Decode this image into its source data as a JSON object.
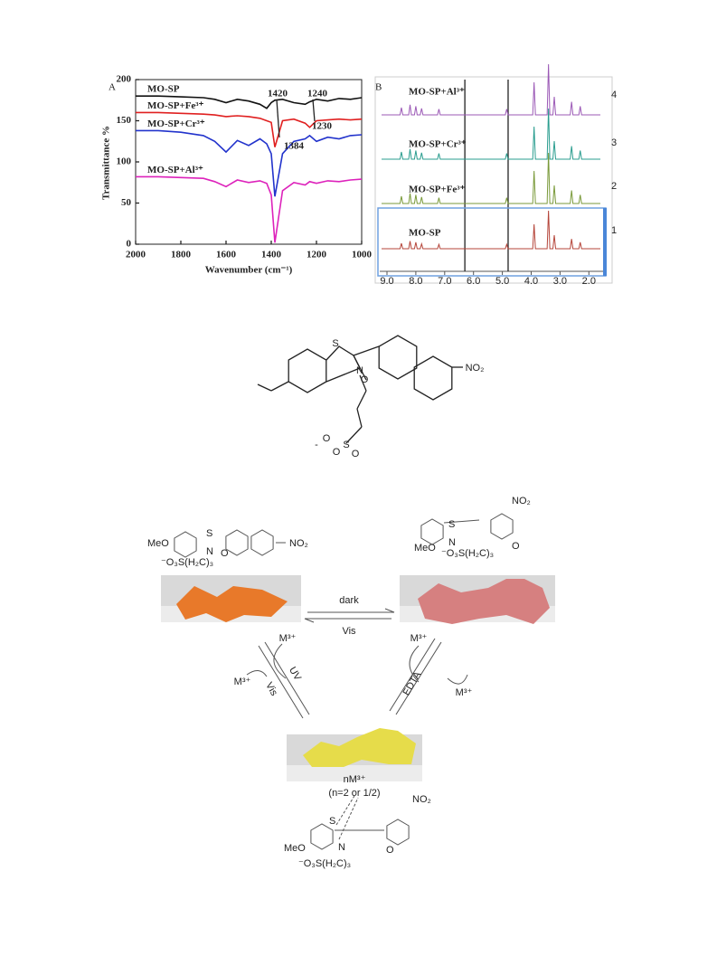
{
  "panel_a": {
    "type": "line",
    "label": "A",
    "y_label": "Transmittance %",
    "x_label": "Wavenumber (cm⁻¹)",
    "x": [
      2000,
      1900,
      1800,
      1700,
      1650,
      1600,
      1550,
      1500,
      1450,
      1420,
      1400,
      1384,
      1350,
      1300,
      1250,
      1230,
      1200,
      1150,
      1100,
      1050,
      1000
    ],
    "xlim": [
      2000,
      1000
    ],
    "xticks": [
      2000,
      1800,
      1600,
      1400,
      1200,
      1000
    ],
    "ylim": [
      0,
      200
    ],
    "yticks": [
      0,
      50,
      100,
      150,
      200
    ],
    "series": [
      {
        "name": "MO-SP",
        "color": "#111111",
        "values": [
          180,
          180,
          179,
          178,
          176,
          172,
          176,
          174,
          170,
          165,
          172,
          175,
          176,
          172,
          170,
          173,
          176,
          174,
          177,
          176,
          178
        ]
      },
      {
        "name": "MO-SP+Fe³⁺",
        "color": "#e02020",
        "values": [
          160,
          160,
          159,
          158,
          157,
          155,
          156,
          155,
          153,
          150,
          148,
          118,
          150,
          152,
          147,
          142,
          150,
          151,
          152,
          151,
          152
        ]
      },
      {
        "name": "MO-SP+Cr³⁺",
        "color": "#2233cc",
        "values": [
          138,
          138,
          136,
          132,
          125,
          112,
          126,
          120,
          128,
          122,
          110,
          58,
          110,
          125,
          128,
          132,
          125,
          130,
          128,
          132,
          133
        ]
      },
      {
        "name": "MO-SP+Al³⁺",
        "color": "#dd22bb",
        "values": [
          82,
          82,
          81,
          80,
          76,
          70,
          78,
          75,
          77,
          74,
          60,
          2,
          65,
          75,
          72,
          76,
          74,
          77,
          76,
          78,
          79
        ]
      }
    ],
    "annotations": [
      "1420",
      "1240",
      "1384",
      "1230"
    ]
  },
  "panel_b": {
    "label": "B",
    "xticks": [
      {
        "value": 9,
        "label": "9.0"
      },
      {
        "value": 8,
        "label": "8.0"
      },
      {
        "value": 7,
        "label": "7.0"
      },
      {
        "value": 6,
        "label": "6.0"
      },
      {
        "value": 5,
        "label": "5.0"
      },
      {
        "value": 4,
        "label": "4.0"
      },
      {
        "value": 3,
        "label": "3.0"
      },
      {
        "value": 2,
        "label": "2.0"
      }
    ],
    "traces": [
      {
        "name": "MO-SP+Al³⁺",
        "number": "4",
        "color": "#9b59b6"
      },
      {
        "name": "MO-SP+Cr³⁺",
        "number": "3",
        "color": "#2a9d8f"
      },
      {
        "name": "MO-SP+Fe³⁺",
        "number": "2",
        "color": "#7a9a3a"
      },
      {
        "name": "MO-SP",
        "number": "1",
        "color": "#b5453a"
      }
    ]
  },
  "structure": {
    "labels": [
      "S",
      "N",
      "O",
      "NO₂",
      "O",
      "S",
      "O",
      "O",
      "-"
    ]
  },
  "scheme": {
    "dark": "dark",
    "vis_top": "Vis",
    "m_left_top": "M³⁺",
    "uv": "UV",
    "vis_left": "Vis",
    "m_left_bottom": "M³⁺",
    "m_right_top": "M³⁺",
    "edta": "EDTA",
    "m_right_bottom": "M³⁺",
    "complex": "nM³⁺",
    "n_note": "(n=2 or 1/2)",
    "meo": "MeO",
    "sulfo": "⁻O₃S(H₂C)₃",
    "no2": "NO₂",
    "s": "S",
    "n": "N",
    "o": "O"
  }
}
